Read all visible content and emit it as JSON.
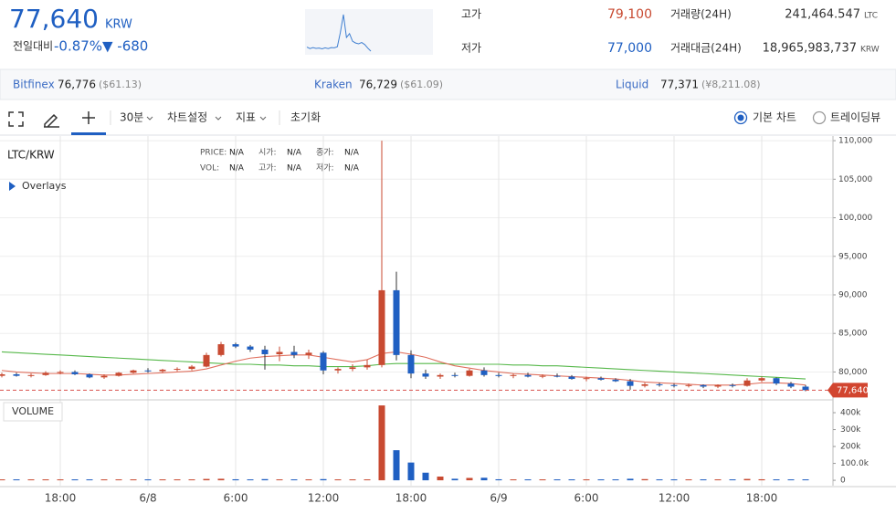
{
  "header": {
    "price": "77,640",
    "currency": "KRW",
    "change_label": "전일대비",
    "change_rate": "-0.87%",
    "change": "▼ -680",
    "sparkline": [
      79200,
      78600,
      79000,
      78700,
      78800,
      78500,
      78900,
      78600,
      79000,
      78900,
      79300,
      85000,
      92000,
      83000,
      84500,
      81500,
      80800,
      80500,
      81000,
      80200,
      78800,
      77600
    ],
    "stats": [
      {
        "label": "고가",
        "value": "79,100"
      },
      {
        "label": "저가",
        "value": "77,000"
      },
      {
        "label": "거래량(24H)",
        "value": "241,464.547",
        "unit": "LTC"
      },
      {
        "label": "거래대금(24H)",
        "value": "18,965,983,737",
        "unit": "KRW"
      }
    ]
  },
  "exchanges": [
    {
      "name": "Bitfinex",
      "price": "76,776",
      "foreign": "($61.13)"
    },
    {
      "name": "Kraken",
      "price": "76,729",
      "foreign": "($61.09)"
    },
    {
      "name": "Liquid",
      "price": "77,371",
      "foreign": "(¥8,211.08)"
    }
  ],
  "toolbar": {
    "interval": "30분",
    "items": [
      "차트설정",
      "지표",
      "초기화"
    ],
    "views": [
      "기본 차트",
      "트레이딩뷰"
    ],
    "selected_view": 0
  },
  "chart_data": {
    "type": "candlestick",
    "title": "LTC/KRW",
    "overlays": "Overlays",
    "info": [
      {
        "label": "PRICE:",
        "value": "N/A"
      },
      {
        "label": "시가:",
        "value": "N/A"
      },
      {
        "label": "종가:",
        "value": "N/A"
      },
      {
        "label": "VOL:",
        "value": "N/A"
      },
      {
        "label": "고가:",
        "value": "N/A"
      },
      {
        "label": "저가:",
        "value": "N/A"
      }
    ],
    "up_color": "#c84a31",
    "down_color": "#1f5fc2",
    "open": [
      79500,
      79700,
      79500,
      79600,
      79900,
      80000,
      79700,
      79300,
      79500,
      79900,
      80200,
      80100,
      80300,
      80400,
      80700,
      82200,
      83600,
      83300,
      82900,
      82300,
      82600,
      82200,
      82500,
      80200,
      80400,
      80600,
      80900,
      90600,
      82200,
      79800,
      79400,
      79600,
      79500,
      80200,
      79600,
      79500,
      79600,
      79400,
      79500,
      79400,
      79100,
      79200,
      79000,
      78800,
      78200,
      78400,
      78300,
      78200,
      78300,
      78100,
      78300,
      78200,
      78900,
      79200,
      78500,
      78100
    ],
    "high": [
      79900,
      79900,
      79800,
      80100,
      80200,
      80200,
      79800,
      79700,
      80000,
      80300,
      80500,
      80400,
      80600,
      80900,
      82500,
      83900,
      83800,
      83500,
      83400,
      83300,
      83400,
      82900,
      82700,
      80600,
      81000,
      81600,
      110000,
      93000,
      82800,
      80300,
      79800,
      79900,
      80400,
      80600,
      79900,
      79800,
      79900,
      79700,
      79800,
      79600,
      79400,
      79400,
      79200,
      79100,
      78600,
      78600,
      78500,
      78500,
      78400,
      78400,
      78500,
      79200,
      79400,
      79300,
      78700,
      78300
    ],
    "low": [
      79300,
      79400,
      79300,
      79500,
      79700,
      79600,
      79200,
      79100,
      79400,
      79800,
      79900,
      79900,
      80100,
      80200,
      80600,
      82000,
      83100,
      82600,
      80300,
      81400,
      81800,
      81700,
      79700,
      79800,
      80100,
      80300,
      80600,
      81500,
      79200,
      79100,
      79100,
      79300,
      79400,
      79400,
      79300,
      79200,
      79300,
      79200,
      79300,
      79000,
      78800,
      78900,
      78700,
      77700,
      78000,
      78100,
      78000,
      78000,
      77900,
      77900,
      78000,
      78100,
      78700,
      78300,
      77900,
      77500
    ],
    "close": [
      79700,
      79500,
      79600,
      79900,
      80000,
      79700,
      79300,
      79500,
      79900,
      80200,
      80100,
      80300,
      80400,
      80700,
      82200,
      83600,
      83300,
      82900,
      82300,
      82600,
      82200,
      82500,
      80200,
      80400,
      80600,
      80900,
      90600,
      82200,
      79800,
      79400,
      79600,
      79500,
      80200,
      79600,
      79500,
      79600,
      79400,
      79500,
      79400,
      79100,
      79200,
      79000,
      78800,
      78200,
      78400,
      78300,
      78200,
      78300,
      78100,
      78300,
      78200,
      78900,
      79200,
      78500,
      78100,
      77640
    ],
    "series": [
      {
        "color": "#56b84a",
        "values": [
          82600,
          82500,
          82400,
          82300,
          82200,
          82100,
          82000,
          81900,
          81800,
          81700,
          81600,
          81500,
          81400,
          81300,
          81200,
          81100,
          81000,
          81000,
          80900,
          80900,
          80800,
          80800,
          80700,
          80700,
          80700,
          80800,
          81000,
          81100,
          81100,
          81100,
          81100,
          81000,
          81000,
          81000,
          81000,
          80900,
          80900,
          80800,
          80800,
          80700,
          80600,
          80500,
          80400,
          80300,
          80200,
          80100,
          80000,
          79900,
          79800,
          79700,
          79600,
          79500,
          79400,
          79300,
          79200,
          79100
        ]
      },
      {
        "color": "#e0705e",
        "values": [
          80200,
          80000,
          79900,
          79800,
          79800,
          79800,
          79700,
          79600,
          79600,
          79700,
          79800,
          79900,
          80000,
          80100,
          80400,
          80900,
          81400,
          81800,
          82000,
          82100,
          82200,
          82200,
          81900,
          81600,
          81300,
          81600,
          82400,
          82600,
          82300,
          81900,
          81300,
          80800,
          80500,
          80200,
          80000,
          79800,
          79700,
          79600,
          79500,
          79400,
          79300,
          79200,
          79100,
          78900,
          78700,
          78600,
          78500,
          78400,
          78300,
          78300,
          78300,
          78400,
          78600,
          78600,
          78500,
          78300
        ]
      }
    ],
    "last": {
      "value": 77640,
      "label": "77,640"
    },
    "ylim": [
      76500,
      110600
    ],
    "yticks": [
      {
        "value": 80000,
        "label": "80,000"
      },
      {
        "value": 85000,
        "label": "85,000"
      },
      {
        "value": 90000,
        "label": "90,000"
      },
      {
        "value": 95000,
        "label": "95,000"
      },
      {
        "value": 100000,
        "label": "100,000"
      },
      {
        "value": 105000,
        "label": "105,000"
      },
      {
        "value": 110000,
        "label": "110,000"
      }
    ],
    "xlim": [
      -0.125,
      56.875
    ],
    "xticks": [
      {
        "value": 4,
        "label": "18:00"
      },
      {
        "value": 10,
        "label": "6/8"
      },
      {
        "value": 16,
        "label": "6:00"
      },
      {
        "value": 22,
        "label": "12:00"
      },
      {
        "value": 28,
        "label": "18:00"
      },
      {
        "value": 34,
        "label": "6/9"
      },
      {
        "value": 40,
        "label": "6:00"
      },
      {
        "value": 46,
        "label": "12:00"
      },
      {
        "value": 52,
        "label": "18:00"
      }
    ],
    "grid": true,
    "volume": {
      "title": "VOLUME",
      "values": [
        2000,
        1500,
        3000,
        2500,
        2000,
        1800,
        1500,
        2000,
        2500,
        3000,
        2000,
        1800,
        2000,
        2500,
        8000,
        9000,
        6000,
        5000,
        7000,
        5000,
        4000,
        3500,
        7000,
        4000,
        3500,
        5000,
        443000,
        178000,
        105000,
        45000,
        22000,
        9000,
        14000,
        15000,
        6000,
        4000,
        3500,
        3000,
        2500,
        2000,
        3000,
        4000,
        5000,
        9000,
        7000,
        4000,
        3000,
        2500,
        3000,
        2000,
        2500,
        8000,
        6000,
        5000,
        4000,
        3000
      ],
      "ylim": [
        -32000,
        465000
      ],
      "yticks": [
        0,
        {
          "value": 100000,
          "label": "100.0k"
        },
        {
          "value": 200000,
          "label": "200k"
        },
        {
          "value": 300000,
          "label": "300k"
        },
        {
          "value": 400000,
          "label": "400k"
        }
      ]
    }
  }
}
